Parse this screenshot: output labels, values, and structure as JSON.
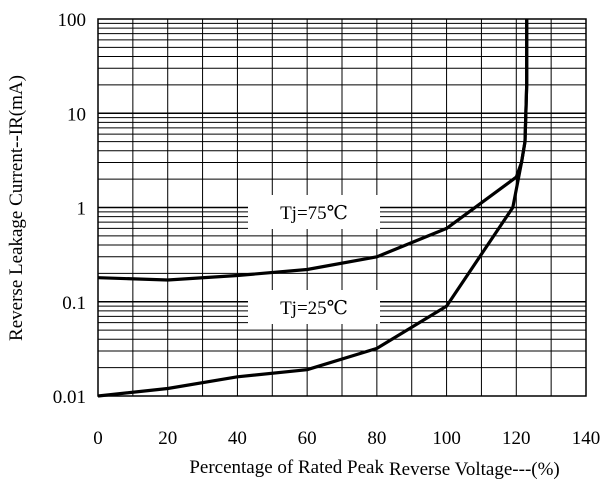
{
  "chart_data": {
    "type": "line",
    "title": "",
    "xlabel_part1": "Percentage of Rated Peak",
    "xlabel_part2": "Reverse Voltage---(%)",
    "ylabel": "Reverse Leakage Current--IR(mA)",
    "xlim": [
      0,
      140
    ],
    "ylim": [
      0.01,
      100
    ],
    "yscale": "log",
    "grid": true,
    "x_ticks": [
      "0",
      "20",
      "40",
      "60",
      "80",
      "100",
      "120",
      "140"
    ],
    "y_ticks": [
      "0.01",
      "0.1",
      "1",
      "10",
      "100"
    ],
    "series": [
      {
        "name": "Tj=75℃",
        "x": [
          0,
          20,
          40,
          60,
          80,
          100,
          120,
          121.5,
          122.5,
          123,
          123
        ],
        "y": [
          0.18,
          0.17,
          0.19,
          0.22,
          0.3,
          0.6,
          2.1,
          3.0,
          5.0,
          20,
          100
        ]
      },
      {
        "name": "Tj=25℃",
        "x": [
          0,
          20,
          40,
          60,
          80,
          100,
          119,
          121.5,
          122.5,
          123,
          123
        ],
        "y": [
          0.01,
          0.012,
          0.016,
          0.019,
          0.032,
          0.09,
          1.0,
          3.0,
          5.0,
          20,
          100
        ]
      }
    ]
  }
}
